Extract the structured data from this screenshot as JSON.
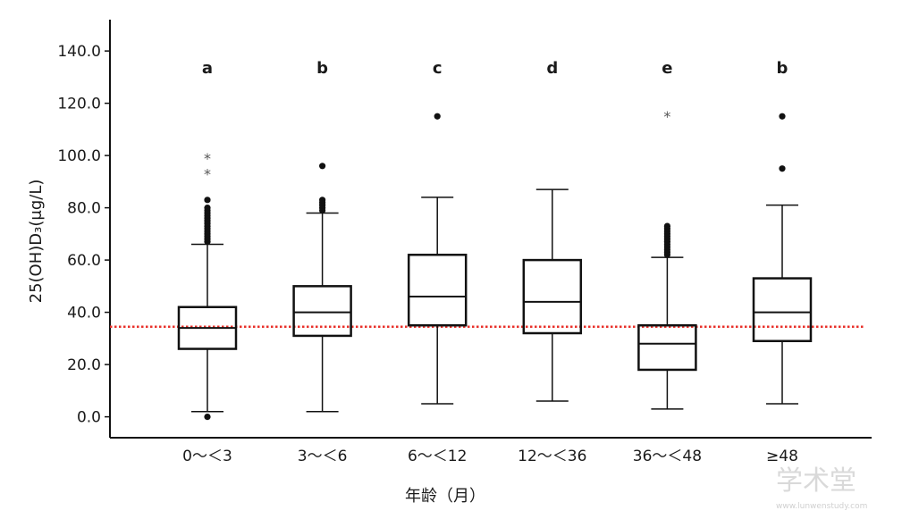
{
  "chart_data": {
    "type": "box",
    "ylabel": "25(OH)D₃(μg/L)",
    "xlabel": "年龄（月）",
    "ylim": [
      -8,
      152
    ],
    "yticks": [
      0,
      20,
      40,
      60,
      80,
      100,
      120,
      140
    ],
    "ytick_labels": [
      "0.0",
      "20.0",
      "40.0",
      "60.0",
      "80.0",
      "100.0",
      "120.0",
      "140.0"
    ],
    "reference_line": {
      "value": 34.5,
      "color": "#e8302a",
      "style": "dotted"
    },
    "grid": false,
    "groups": [
      {
        "category": "0～＜3",
        "letter": "a",
        "whisker_low": 2,
        "q1": 26,
        "median": 34,
        "q3": 42,
        "whisker_high": 66,
        "outliers_dot": [
          0,
          67,
          68,
          69,
          70,
          71,
          72,
          73,
          74,
          75,
          76,
          77,
          78,
          79,
          80,
          83
        ],
        "outliers_star": [
          93,
          99
        ]
      },
      {
        "category": "3～＜6",
        "letter": "b",
        "whisker_low": 2,
        "q1": 31,
        "median": 40,
        "q3": 50,
        "whisker_high": 78,
        "outliers_dot": [
          79,
          80,
          81,
          82,
          83,
          96
        ],
        "outliers_star": []
      },
      {
        "category": "6～＜12",
        "letter": "c",
        "whisker_low": 5,
        "q1": 35,
        "median": 46,
        "q3": 62,
        "whisker_high": 84,
        "outliers_dot": [
          115
        ],
        "outliers_star": []
      },
      {
        "category": "12～＜36",
        "letter": "d",
        "whisker_low": 6,
        "q1": 32,
        "median": 44,
        "q3": 60,
        "whisker_high": 87,
        "outliers_dot": [],
        "outliers_star": []
      },
      {
        "category": "36～＜48",
        "letter": "e",
        "whisker_low": 3,
        "q1": 18,
        "median": 28,
        "q3": 35,
        "whisker_high": 61,
        "outliers_dot": [
          62,
          63,
          64,
          65,
          66,
          67,
          68,
          69,
          70,
          71,
          72,
          73
        ],
        "outliers_star": [
          115
        ]
      },
      {
        "category": "≥48",
        "letter": "b",
        "whisker_low": 5,
        "q1": 29,
        "median": 40,
        "q3": 53,
        "whisker_high": 81,
        "outliers_dot": [
          95,
          115
        ],
        "outliers_star": []
      }
    ]
  },
  "watermark": {
    "text": "学术堂",
    "subtext": "www.lunwenstudy.com"
  }
}
